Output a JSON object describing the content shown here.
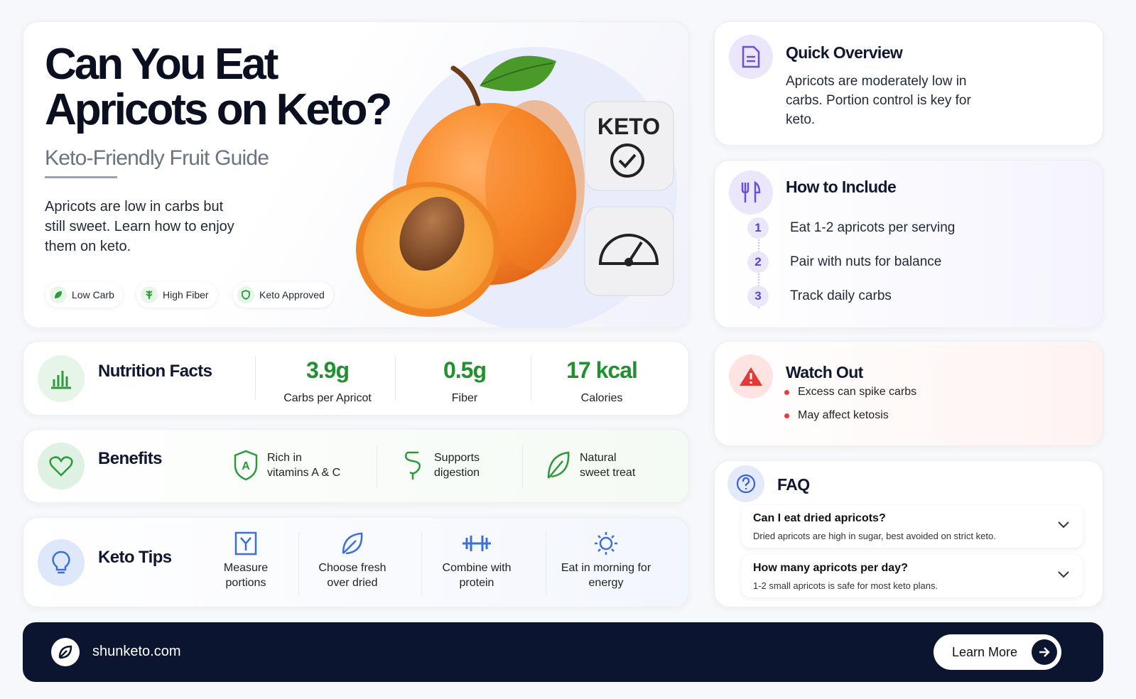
{
  "hero": {
    "title_lines": [
      "Can You Eat",
      "Apricots on Keto?"
    ],
    "subtitle": "Keto-Friendly Fruit Guide",
    "description": "Apricots are low in carbs but still sweet. Learn how to enjoy them on keto.",
    "badges": [
      "Low Carb",
      "High Fiber",
      "Keto Approved"
    ],
    "tile_label": "KETO"
  },
  "nutrition": {
    "title": "Nutrition Facts",
    "stats": [
      {
        "value": "3.9g",
        "label": "Carbs per Apricot"
      },
      {
        "value": "0.5g",
        "label": "Fiber"
      },
      {
        "value": "17 kcal",
        "label": "Calories"
      }
    ]
  },
  "benefits": {
    "title": "Benefits",
    "items": [
      "Rich in vitamins A & C",
      "Supports digestion",
      "Natural sweet treat"
    ]
  },
  "tips": {
    "title": "Keto Tips",
    "items": [
      "Measure portions",
      "Choose fresh over dried",
      "Combine with protein",
      "Eat in morning for energy"
    ]
  },
  "overview": {
    "title": "Quick Overview",
    "text": "Apricots are moderately low in carbs. Portion control is key for keto."
  },
  "include": {
    "title": "How to Include",
    "steps": [
      {
        "number": 1,
        "text": "Eat 1-2 apricots per serving"
      },
      {
        "number": 2,
        "text": "Pair with nuts for balance"
      },
      {
        "number": 3,
        "text": "Track daily carbs"
      }
    ]
  },
  "watch_out": {
    "title": "Watch Out",
    "bullets": [
      "Excess can spike carbs",
      "May affect ketosis"
    ]
  },
  "faq": {
    "title": "FAQ",
    "items": [
      {
        "question": "Can I eat dried apricots?",
        "answer": "Dried apricots are high in sugar, best avoided on strict keto."
      },
      {
        "question": "How many apricots per day?",
        "answer": "1-2 small apricots is safe for most keto plans."
      }
    ]
  },
  "footer": {
    "site": "shunketo.com",
    "button": "Learn More"
  }
}
